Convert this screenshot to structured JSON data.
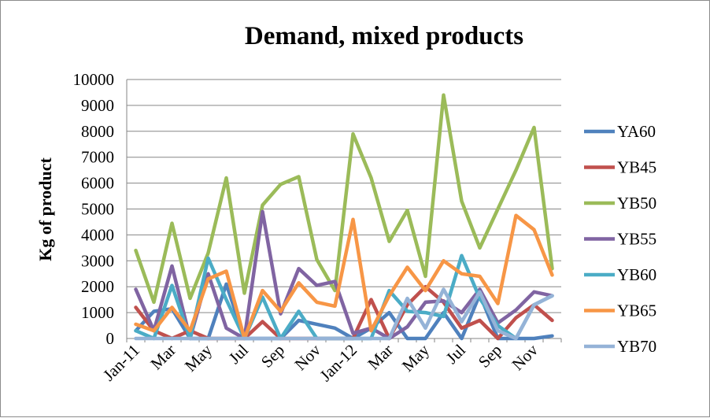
{
  "chart_data": {
    "type": "line",
    "title": "Demand, mixed products",
    "xlabel": "",
    "ylabel": "Kg of product",
    "ylim": [
      0,
      10000
    ],
    "yticks": [
      "0",
      "1000",
      "2000",
      "3000",
      "4000",
      "5000",
      "6000",
      "7000",
      "8000",
      "9000",
      "10000"
    ],
    "grid": true,
    "legend_position": "right",
    "categories": [
      "Jan-11",
      "Feb-11",
      "Mar-11",
      "Apr-11",
      "May-11",
      "Jun-11",
      "Jul-11",
      "Aug-11",
      "Sep-11",
      "Oct-11",
      "Nov-11",
      "Dec-11",
      "Jan-12",
      "Feb-12",
      "Mar-12",
      "Apr-12",
      "May-12",
      "Jun-12",
      "Jul-12",
      "Aug-12",
      "Sep-12",
      "Oct-12",
      "Nov-12",
      "Dec-12"
    ],
    "tick_labels": [
      "Jan-11",
      "",
      "Mar",
      "",
      "May",
      "",
      "Jul",
      "",
      "Sep",
      "",
      "Nov",
      "",
      "Jan-12",
      "",
      "Mar",
      "",
      "May",
      "",
      "Jul",
      "",
      "Sep",
      "",
      "Nov",
      ""
    ],
    "series": [
      {
        "name": "YA60",
        "color": "#4F81BD",
        "values": [
          300,
          1050,
          1150,
          0,
          0,
          2100,
          0,
          0,
          0,
          700,
          550,
          400,
          0,
          400,
          1000,
          0,
          0,
          1000,
          0,
          1700,
          0,
          0,
          0,
          100
        ]
      },
      {
        "name": "YB45",
        "color": "#C0504D",
        "values": [
          1200,
          300,
          0,
          300,
          0,
          0,
          0,
          650,
          0,
          0,
          0,
          0,
          0,
          1500,
          0,
          1300,
          2000,
          1400,
          400,
          700,
          0,
          800,
          1300,
          700
        ]
      },
      {
        "name": "YB50",
        "color": "#9BBB59",
        "values": [
          3400,
          1400,
          4450,
          1550,
          3300,
          6200,
          1750,
          5150,
          5950,
          6250,
          3050,
          1850,
          7900,
          6200,
          3750,
          4950,
          2400,
          9400,
          5300,
          3500,
          5000,
          6500,
          8150,
          2700
        ]
      },
      {
        "name": "YB55",
        "color": "#8064A2",
        "values": [
          1900,
          300,
          2800,
          0,
          2500,
          400,
          0,
          4900,
          950,
          2700,
          2050,
          2200,
          200,
          400,
          0,
          450,
          1400,
          1450,
          1000,
          1900,
          600,
          1100,
          1800,
          1650
        ]
      },
      {
        "name": "YB60",
        "color": "#4BACC6",
        "values": [
          300,
          0,
          2050,
          0,
          3100,
          1500,
          0,
          1600,
          0,
          1050,
          0,
          0,
          0,
          0,
          1850,
          1050,
          1000,
          850,
          3200,
          1550,
          500,
          0,
          1300,
          1650
        ]
      },
      {
        "name": "YB65",
        "color": "#F79646",
        "values": [
          550,
          300,
          1200,
          300,
          2300,
          2600,
          0,
          1850,
          1050,
          2150,
          1400,
          1250,
          4600,
          300,
          1650,
          2750,
          1850,
          3000,
          2500,
          2400,
          1350,
          4750,
          4200,
          2450
        ]
      },
      {
        "name": "YB70",
        "color": "#95B3D7",
        "values": [
          0,
          0,
          0,
          0,
          0,
          0,
          0,
          0,
          0,
          0,
          0,
          0,
          0,
          0,
          0,
          1550,
          400,
          1900,
          650,
          1800,
          300,
          0,
          1300,
          1650
        ]
      }
    ]
  }
}
